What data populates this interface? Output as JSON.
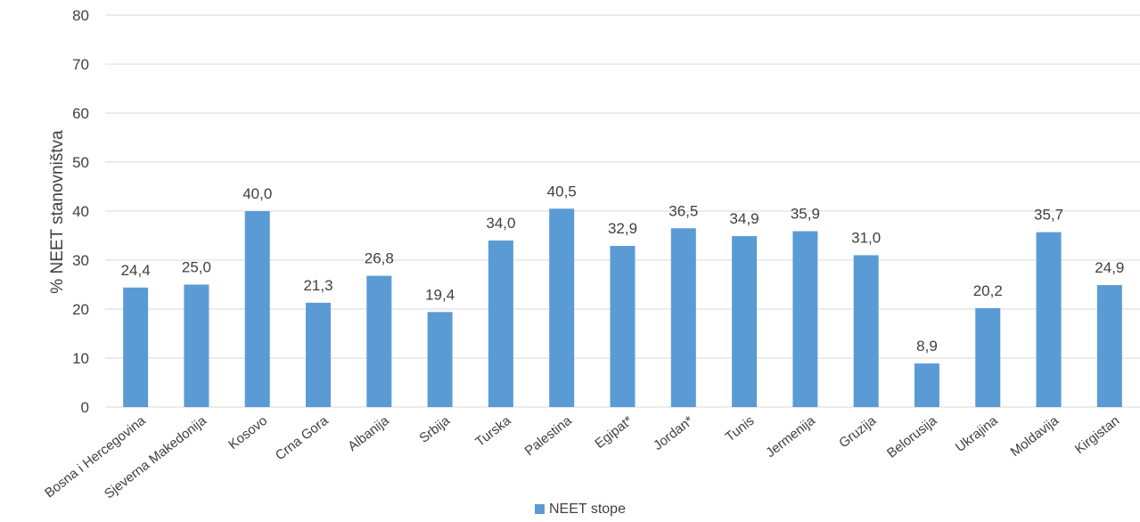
{
  "chart_data": {
    "type": "bar",
    "title": "",
    "xlabel": "",
    "ylabel": "% NEET stanovništva",
    "ylim": [
      0,
      80
    ],
    "yticks": [
      0,
      10,
      20,
      30,
      40,
      50,
      60,
      70,
      80
    ],
    "grid": true,
    "legend_position": "bottom",
    "categories": [
      "Bosna i Hercegovina",
      "Sjeverna Makedonija",
      "Kosovo",
      "Crna Gora",
      "Albanija",
      "Srbija",
      "Turska",
      "Palestina",
      "Egipat*",
      "Jordan*",
      "Tunis",
      "Jermenija",
      "Gruzija",
      "Belorusija",
      "Ukrajina",
      "Moldavija",
      "Kirgistan"
    ],
    "series": [
      {
        "name": "NEET stope",
        "color": "#5b9bd5",
        "values": [
          24.4,
          25.0,
          40.0,
          21.3,
          26.8,
          19.4,
          34.0,
          40.5,
          32.9,
          36.5,
          34.9,
          35.9,
          31.0,
          8.9,
          20.2,
          35.7,
          24.9
        ],
        "labels": [
          "24,4",
          "25,0",
          "40,0",
          "21,3",
          "26,8",
          "19,4",
          "34,0",
          "40,5",
          "32,9",
          "36,5",
          "34,9",
          "35,9",
          "31,0",
          "8,9",
          "20,2",
          "35,7",
          "24,9"
        ]
      }
    ]
  },
  "colors": {
    "bar": "#5b9bd5",
    "grid": "#d9d9d9",
    "text": "#404040"
  }
}
